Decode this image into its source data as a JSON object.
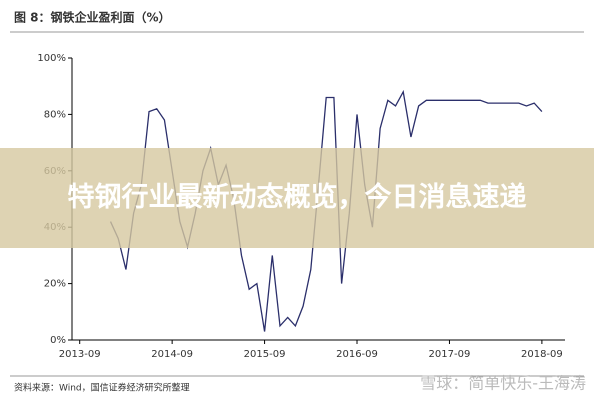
{
  "chart_data": {
    "type": "line",
    "title": "图 8：钢铁企业盈利面（%）",
    "x": [
      "2014-01",
      "2014-02",
      "2014-03",
      "2014-04",
      "2014-05",
      "2014-06",
      "2014-07",
      "2014-08",
      "2014-09",
      "2014-10",
      "2014-11",
      "2014-12",
      "2015-01",
      "2015-02",
      "2015-03",
      "2015-04",
      "2015-05",
      "2015-06",
      "2015-07",
      "2015-08",
      "2015-09",
      "2015-10",
      "2015-11",
      "2015-12",
      "2016-01",
      "2016-02",
      "2016-03",
      "2016-04",
      "2016-05",
      "2016-06",
      "2016-07",
      "2016-08",
      "2016-09",
      "2016-10",
      "2016-11",
      "2016-12",
      "2017-01",
      "2017-02",
      "2017-03",
      "2017-04",
      "2017-05",
      "2017-06",
      "2017-07",
      "2017-08",
      "2017-09",
      "2017-10",
      "2017-11",
      "2017-12",
      "2018-01",
      "2018-02",
      "2018-03",
      "2018-04",
      "2018-05",
      "2018-06",
      "2018-07",
      "2018-08",
      "2018-09"
    ],
    "series": [
      {
        "color": "#2b2f6b",
        "values": [
          42,
          36,
          25,
          45,
          55,
          81,
          82,
          78,
          60,
          42,
          33,
          45,
          60,
          68,
          55,
          62,
          50,
          30,
          18,
          20,
          3,
          30,
          5,
          8,
          5,
          12,
          25,
          55,
          86,
          86,
          20,
          45,
          80,
          55,
          40,
          75,
          85,
          83,
          88,
          72,
          83,
          85,
          85,
          85,
          85,
          85,
          85,
          85,
          85,
          84,
          84,
          84,
          84,
          84,
          83,
          84,
          81
        ]
      }
    ],
    "xlim": [
      "2013-08",
      "2018-12"
    ],
    "xticks": [
      "2013-09",
      "2014-09",
      "2015-09",
      "2016-09",
      "2017-09",
      "2018-09"
    ],
    "ylim": [
      0,
      100
    ],
    "yticks": [
      {
        "value": 0,
        "label": "0%"
      },
      {
        "value": 20,
        "label": "20%"
      },
      {
        "value": 40,
        "label": "40%"
      },
      {
        "value": 60,
        "label": "60%"
      },
      {
        "value": 80,
        "label": "80%"
      },
      {
        "value": 100,
        "label": "100%"
      }
    ],
    "source": "资料来源：Wind，国信证券经济研究所整理"
  },
  "overlay_title": "特钢行业最新动态概览，今日消息速递",
  "watermark": "雪球：简单快乐-王海涛"
}
